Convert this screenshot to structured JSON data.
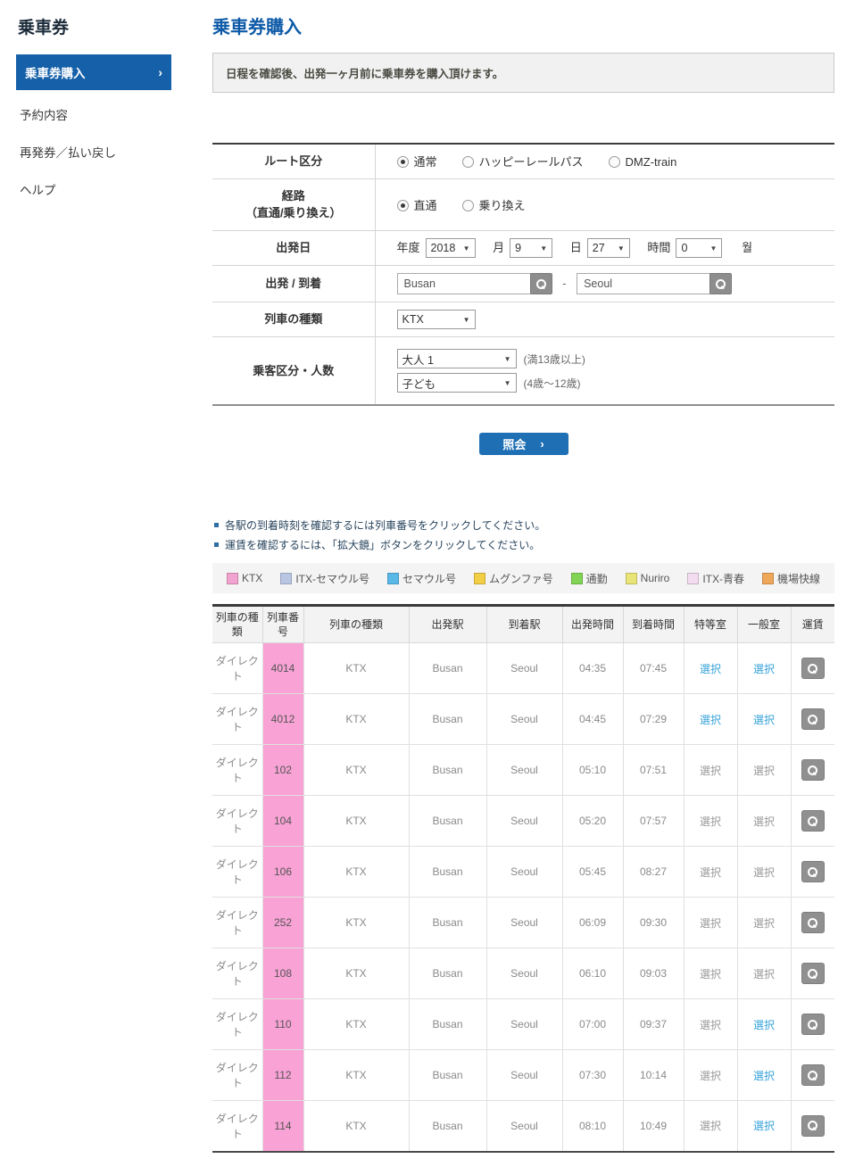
{
  "colors": {
    "accent": "#1560a8",
    "title": "#0d5aa7",
    "button": "#1e6fb4",
    "link": "#36a3d9",
    "pink": "#f8a2d5"
  },
  "sidebar": {
    "title": "乗車券",
    "active_arrow": "›",
    "items": [
      {
        "label": "乗車券購入",
        "active": true
      },
      {
        "label": "予約内容",
        "active": false
      },
      {
        "label": "再発券／払い戻し",
        "active": false
      },
      {
        "label": "ヘルプ",
        "active": false
      }
    ]
  },
  "header": {
    "title": "乗車券購入"
  },
  "notice": "日程を確認後、出発一ヶ月前に乗車券を購入頂けます。",
  "form": {
    "route_type": {
      "label": "ルート区分",
      "options": [
        {
          "label": "通常",
          "checked": true
        },
        {
          "label": "ハッピーレールパス",
          "checked": false
        },
        {
          "label": "DMZ-train",
          "checked": false
        }
      ]
    },
    "path_type": {
      "label_line1": "経路",
      "label_line2": "（直通/乗り換え）",
      "options": [
        {
          "label": "直通",
          "checked": true
        },
        {
          "label": "乗り換え",
          "checked": false
        }
      ]
    },
    "departure_date": {
      "label": "出発日",
      "year_label": "年度",
      "year_value": "2018",
      "month_label": "月",
      "month_value": "9",
      "day_label": "日",
      "day_value": "27",
      "hour_label": "時間",
      "hour_value": "0",
      "suffix": "월",
      "dropdown_arrow": "▼"
    },
    "stations": {
      "label": "出発 / 到着",
      "from_value": "Busan",
      "to_value": "Seoul",
      "separator": "-"
    },
    "train_type": {
      "label": "列車の種類",
      "value": "KTX"
    },
    "passengers": {
      "label": "乗客区分・人数",
      "adult_value": "大人 1",
      "adult_note": "(満13歳以上)",
      "child_value": "子ども",
      "child_note": "(4歳～12歳)"
    }
  },
  "search_button": {
    "label": "照会",
    "arrow": "›"
  },
  "notes": [
    "各駅の到着時刻を確認するには列車番号をクリックしてください。",
    "運賃を確認するには、「拡大鏡」ボタンをクリックしてください。"
  ],
  "legend": [
    {
      "label": "KTX",
      "color": "#f2a3cf"
    },
    {
      "label": "ITX-セマウル号",
      "color": "#b9c6e3"
    },
    {
      "label": "セマウル号",
      "color": "#59b8e8"
    },
    {
      "label": "ムグンファ号",
      "color": "#f2cf45"
    },
    {
      "label": "通勤",
      "color": "#82d455"
    },
    {
      "label": "Nuriro",
      "color": "#e9e478"
    },
    {
      "label": "ITX-青春",
      "color": "#f3dcef"
    },
    {
      "label": "機場快線",
      "color": "#efa75a"
    }
  ],
  "table": {
    "headers": [
      "列車の種類",
      "列車番号",
      "列車の種類",
      "出発駅",
      "到着駅",
      "出発時間",
      "到着時間",
      "特等室",
      "一般室",
      "運賃"
    ],
    "select_label": "選択",
    "rows": [
      {
        "category": "ダイレクト",
        "number": "4014",
        "type": "KTX",
        "from": "Busan",
        "to": "Seoul",
        "dep": "04:35",
        "arr": "07:45",
        "first_class": "available",
        "economy": "available"
      },
      {
        "category": "ダイレクト",
        "number": "4012",
        "type": "KTX",
        "from": "Busan",
        "to": "Seoul",
        "dep": "04:45",
        "arr": "07:29",
        "first_class": "available",
        "economy": "available"
      },
      {
        "category": "ダイレクト",
        "number": "102",
        "type": "KTX",
        "from": "Busan",
        "to": "Seoul",
        "dep": "05:10",
        "arr": "07:51",
        "first_class": "unavailable",
        "economy": "unavailable"
      },
      {
        "category": "ダイレクト",
        "number": "104",
        "type": "KTX",
        "from": "Busan",
        "to": "Seoul",
        "dep": "05:20",
        "arr": "07:57",
        "first_class": "unavailable",
        "economy": "unavailable"
      },
      {
        "category": "ダイレクト",
        "number": "106",
        "type": "KTX",
        "from": "Busan",
        "to": "Seoul",
        "dep": "05:45",
        "arr": "08:27",
        "first_class": "unavailable",
        "economy": "unavailable"
      },
      {
        "category": "ダイレクト",
        "number": "252",
        "type": "KTX",
        "from": "Busan",
        "to": "Seoul",
        "dep": "06:09",
        "arr": "09:30",
        "first_class": "unavailable",
        "economy": "unavailable"
      },
      {
        "category": "ダイレクト",
        "number": "108",
        "type": "KTX",
        "from": "Busan",
        "to": "Seoul",
        "dep": "06:10",
        "arr": "09:03",
        "first_class": "unavailable",
        "economy": "unavailable"
      },
      {
        "category": "ダイレクト",
        "number": "110",
        "type": "KTX",
        "from": "Busan",
        "to": "Seoul",
        "dep": "07:00",
        "arr": "09:37",
        "first_class": "unavailable",
        "economy": "available"
      },
      {
        "category": "ダイレクト",
        "number": "112",
        "type": "KTX",
        "from": "Busan",
        "to": "Seoul",
        "dep": "07:30",
        "arr": "10:14",
        "first_class": "unavailable",
        "economy": "available"
      },
      {
        "category": "ダイレクト",
        "number": "114",
        "type": "KTX",
        "from": "Busan",
        "to": "Seoul",
        "dep": "08:10",
        "arr": "10:49",
        "first_class": "unavailable",
        "economy": "available"
      }
    ]
  }
}
